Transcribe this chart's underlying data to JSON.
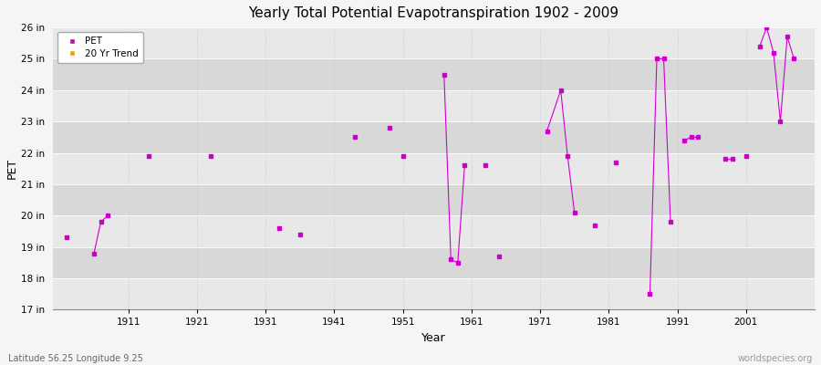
{
  "title": "Yearly Total Potential Evapotranspiration 1902 - 2009",
  "xlabel": "Year",
  "ylabel": "PET",
  "lat_lon_label": "Latitude 56.25 Longitude 9.25",
  "watermark": "worldspecies.org",
  "ylim": [
    17,
    26
  ],
  "ytick_labels": [
    "17 in",
    "18 in",
    "19 in",
    "20 in",
    "21 in",
    "22 in",
    "23 in",
    "24 in",
    "25 in",
    "26 in"
  ],
  "ytick_values": [
    17,
    18,
    19,
    20,
    21,
    22,
    23,
    24,
    25,
    26
  ],
  "xtick_values": [
    1911,
    1921,
    1931,
    1941,
    1951,
    1961,
    1971,
    1981,
    1991,
    2001
  ],
  "xlim": [
    1900,
    2011
  ],
  "fig_bg_color": "#f5f5f5",
  "plot_bg_color": "#e8e8e8",
  "band_light": "#e8e8e8",
  "band_dark": "#d8d8d8",
  "line_color": "#cc00cc",
  "legend_pet_color": "#cc00cc",
  "legend_trend_color": "#ff9900",
  "pet_data": [
    [
      1902,
      19.3
    ],
    [
      1906,
      18.8
    ],
    [
      1907,
      19.8
    ],
    [
      1908,
      20.0
    ],
    [
      1914,
      21.9
    ],
    [
      1923,
      21.9
    ],
    [
      1933,
      19.6
    ],
    [
      1936,
      19.4
    ],
    [
      1944,
      22.5
    ],
    [
      1949,
      22.8
    ],
    [
      1951,
      21.9
    ],
    [
      1957,
      24.5
    ],
    [
      1958,
      18.6
    ],
    [
      1959,
      18.5
    ],
    [
      1960,
      21.6
    ],
    [
      1963,
      21.6
    ],
    [
      1965,
      18.7
    ],
    [
      1972,
      22.7
    ],
    [
      1974,
      24.0
    ],
    [
      1975,
      21.9
    ],
    [
      1976,
      20.1
    ],
    [
      1979,
      19.7
    ],
    [
      1982,
      21.7
    ],
    [
      1987,
      17.5
    ],
    [
      1988,
      25.0
    ],
    [
      1989,
      25.0
    ],
    [
      1990,
      19.8
    ],
    [
      1992,
      22.4
    ],
    [
      1993,
      22.5
    ],
    [
      1994,
      22.5
    ],
    [
      1998,
      21.8
    ],
    [
      1999,
      21.8
    ],
    [
      2001,
      21.9
    ],
    [
      2003,
      25.4
    ],
    [
      2004,
      26.0
    ],
    [
      2005,
      25.2
    ],
    [
      2006,
      23.0
    ],
    [
      2007,
      25.7
    ],
    [
      2008,
      25.0
    ]
  ],
  "connected_segments": [
    [
      1906,
      1907,
      1908
    ],
    [
      1957,
      1958,
      1959,
      1960
    ],
    [
      1972,
      1974,
      1975,
      1976
    ],
    [
      1987,
      1988,
      1989,
      1990
    ],
    [
      1992,
      1993,
      1994
    ],
    [
      1998,
      1999
    ],
    [
      2003,
      2004,
      2005,
      2006,
      2007,
      2008
    ]
  ]
}
